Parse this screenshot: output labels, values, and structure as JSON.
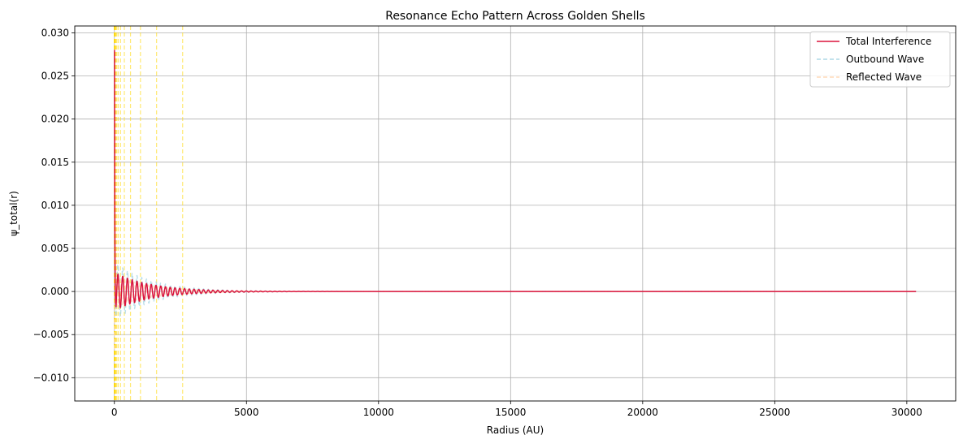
{
  "chart_data": {
    "type": "line",
    "title": "Resonance Echo Pattern Across Golden Shells",
    "xlabel": "Radius (AU)",
    "ylabel": "ψ_total(r)",
    "xlim": [
      -1500,
      31850
    ],
    "ylim": [
      -0.0127,
      0.0308
    ],
    "xticks": [
      0,
      5000,
      10000,
      15000,
      20000,
      25000,
      30000
    ],
    "xtick_labels": [
      "0",
      "5000",
      "10000",
      "15000",
      "20000",
      "25000",
      "30000"
    ],
    "yticks": [
      -0.01,
      -0.005,
      0.0,
      0.005,
      0.01,
      0.015,
      0.02,
      0.025,
      0.03
    ],
    "ytick_labels": [
      "−0.010",
      "−0.005",
      "0.000",
      "0.005",
      "0.010",
      "0.015",
      "0.020",
      "0.025",
      "0.030"
    ],
    "grid": true,
    "legend_position": "top-right",
    "shell_radii": [
      1,
      2,
      3,
      5,
      8,
      13,
      21,
      34,
      55,
      89,
      144,
      233,
      377,
      610,
      987,
      1597,
      2584
    ],
    "shell_color": "#ffd700",
    "model": {
      "r_max": 30350,
      "peak_total": 0.0289,
      "trough_total": -0.0035,
      "envelope_total": 0.0022,
      "envelope_outbound": 0.0034,
      "decay_scale": 1400,
      "wavelength": 180
    },
    "series": [
      {
        "name": "Total Interference",
        "color": "#dc143c",
        "style": "solid"
      },
      {
        "name": "Outbound Wave",
        "color": "#add8e6",
        "style": "dashed"
      },
      {
        "name": "Reflected Wave",
        "color": "#ffdab9",
        "style": "dashed"
      }
    ]
  }
}
